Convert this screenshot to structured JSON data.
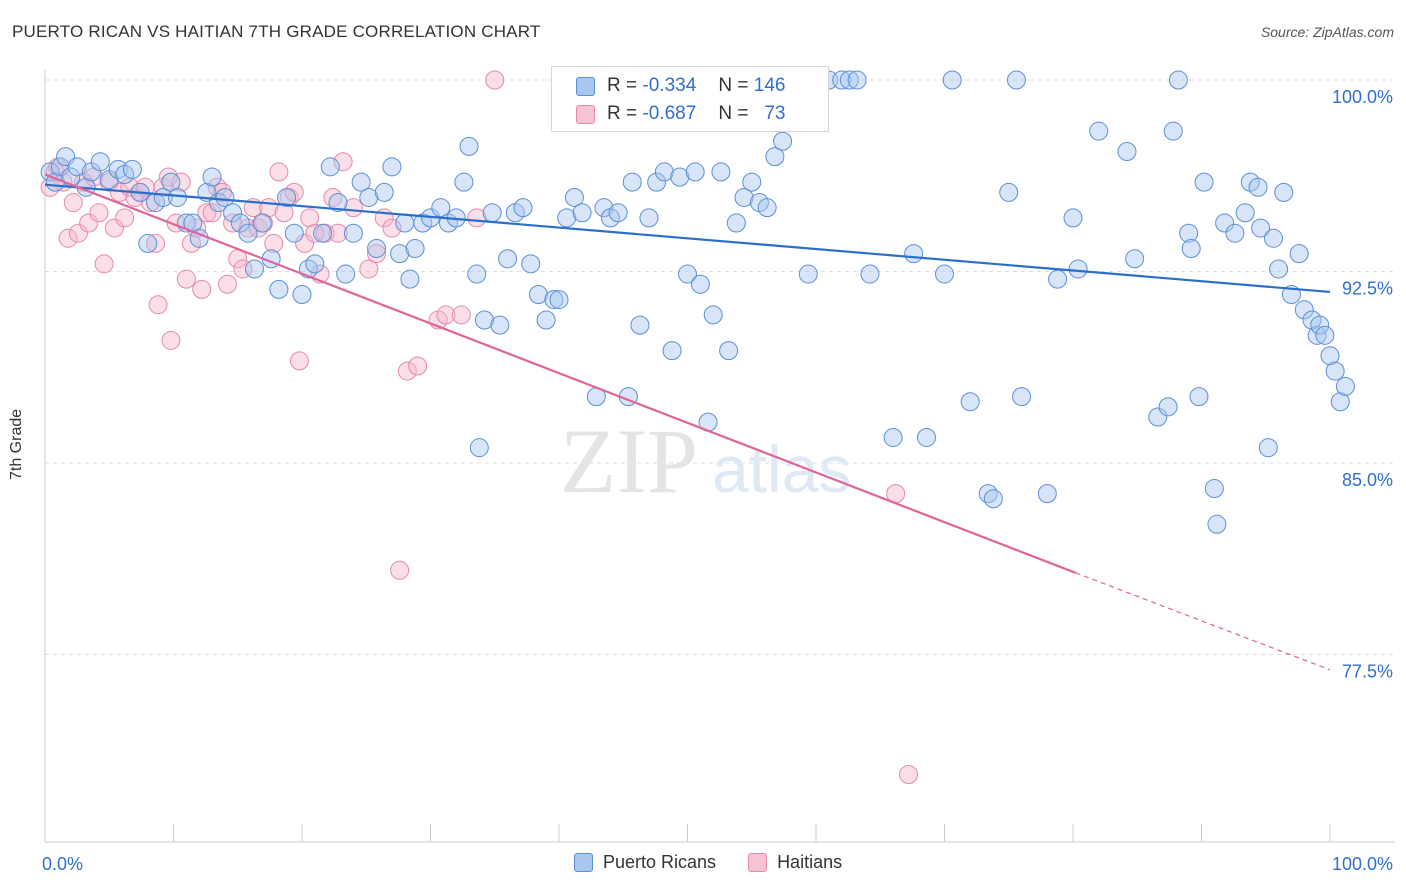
{
  "title": "PUERTO RICAN VS HAITIAN 7TH GRADE CORRELATION CHART",
  "source": "Source: ZipAtlas.com",
  "watermark": {
    "zip": "ZIP",
    "atlas": "atlas"
  },
  "stats": [
    {
      "r_label": "R =",
      "r_value": "-0.334",
      "n_label": "N =",
      "n_value": "146"
    },
    {
      "r_label": "R =",
      "r_value": "-0.687",
      "n_label": "N =",
      "n_value": "73"
    }
  ],
  "legend": {
    "blue": "Puerto Ricans",
    "pink": "Haitians"
  },
  "colors": {
    "blue_fill": "#a9c6ef",
    "blue_stroke": "#5b8fd6",
    "blue_line": "#2a6fcc",
    "pink_fill": "#f6b9cd",
    "pink_stroke": "#e889a9",
    "pink_line": "#e0649a",
    "tick_label": "#2f6fd0",
    "grid": "#dddddd"
  },
  "chart_data": {
    "type": "scatter",
    "title": "PUERTO RICAN VS HAITIAN 7TH GRADE CORRELATION CHART",
    "xlabel": "",
    "ylabel": "7th Grade",
    "xlim": [
      0,
      100
    ],
    "ylim": [
      71,
      101.5
    ],
    "x_tick_labels": [
      "0.0%",
      "100.0%"
    ],
    "y_ticks": [
      100,
      92.5,
      85,
      77.5
    ],
    "y_tick_labels": [
      "100.0%",
      "92.5%",
      "85.0%",
      "77.5%"
    ],
    "grid": true,
    "legend_position": "bottom-center",
    "series": [
      {
        "name": "Puerto Ricans",
        "r": -0.334,
        "n": 146,
        "trend": {
          "x": [
            0,
            100
          ],
          "y": [
            95.9,
            91.7
          ]
        },
        "points": [
          [
            0.4,
            96.4
          ],
          [
            0.8,
            96.0
          ],
          [
            1.2,
            96.6
          ],
          [
            1.6,
            97.0
          ],
          [
            2.0,
            96.2
          ],
          [
            2.5,
            96.6
          ],
          [
            3.2,
            95.8
          ],
          [
            3.6,
            96.4
          ],
          [
            4.3,
            96.8
          ],
          [
            5.0,
            96.1
          ],
          [
            5.7,
            96.5
          ],
          [
            6.2,
            96.3
          ],
          [
            6.8,
            96.5
          ],
          [
            7.4,
            95.6
          ],
          [
            8.0,
            93.6
          ],
          [
            8.6,
            95.2
          ],
          [
            9.2,
            95.4
          ],
          [
            9.8,
            96.0
          ],
          [
            10.3,
            95.4
          ],
          [
            11.0,
            94.4
          ],
          [
            11.5,
            94.4
          ],
          [
            12.0,
            93.8
          ],
          [
            12.6,
            95.6
          ],
          [
            13.0,
            96.2
          ],
          [
            13.5,
            95.2
          ],
          [
            14.0,
            95.4
          ],
          [
            14.6,
            94.8
          ],
          [
            15.2,
            94.4
          ],
          [
            15.8,
            94.0
          ],
          [
            16.3,
            92.6
          ],
          [
            16.9,
            94.4
          ],
          [
            17.6,
            93.0
          ],
          [
            18.2,
            91.8
          ],
          [
            18.8,
            95.4
          ],
          [
            19.4,
            94.0
          ],
          [
            20.0,
            91.6
          ],
          [
            20.5,
            92.6
          ],
          [
            21.0,
            92.8
          ],
          [
            21.6,
            94.0
          ],
          [
            22.2,
            96.6
          ],
          [
            22.8,
            95.2
          ],
          [
            23.4,
            92.4
          ],
          [
            24.0,
            94.0
          ],
          [
            24.6,
            96.0
          ],
          [
            25.2,
            95.4
          ],
          [
            25.8,
            93.4
          ],
          [
            26.4,
            95.6
          ],
          [
            27.0,
            96.6
          ],
          [
            27.6,
            93.2
          ],
          [
            28.0,
            94.4
          ],
          [
            28.4,
            92.2
          ],
          [
            28.8,
            93.4
          ],
          [
            29.4,
            94.4
          ],
          [
            30.0,
            94.6
          ],
          [
            30.8,
            95.0
          ],
          [
            31.4,
            94.4
          ],
          [
            32.0,
            94.6
          ],
          [
            32.6,
            96.0
          ],
          [
            33.0,
            97.4
          ],
          [
            33.6,
            92.4
          ],
          [
            34.2,
            90.6
          ],
          [
            34.8,
            94.8
          ],
          [
            35.4,
            90.4
          ],
          [
            36.0,
            93.0
          ],
          [
            36.6,
            94.8
          ],
          [
            37.2,
            95.0
          ],
          [
            37.8,
            92.8
          ],
          [
            38.4,
            91.6
          ],
          [
            39.0,
            90.6
          ],
          [
            39.6,
            91.4
          ],
          [
            40.0,
            91.4
          ],
          [
            40.6,
            94.6
          ],
          [
            41.2,
            95.4
          ],
          [
            41.8,
            94.8
          ],
          [
            42.4,
            100.0
          ],
          [
            42.9,
            87.6
          ],
          [
            43.5,
            95.0
          ],
          [
            44.0,
            94.6
          ],
          [
            44.6,
            94.8
          ],
          [
            45.1,
            99.0
          ],
          [
            45.7,
            96.0
          ],
          [
            46.3,
            90.4
          ],
          [
            47.0,
            94.6
          ],
          [
            47.6,
            96.0
          ],
          [
            48.2,
            96.4
          ],
          [
            48.8,
            89.4
          ],
          [
            49.4,
            96.2
          ],
          [
            50.0,
            92.4
          ],
          [
            50.6,
            96.4
          ],
          [
            51.0,
            92.0
          ],
          [
            51.6,
            86.6
          ],
          [
            52.0,
            90.8
          ],
          [
            52.6,
            96.4
          ],
          [
            53.2,
            89.4
          ],
          [
            53.8,
            94.4
          ],
          [
            54.4,
            95.4
          ],
          [
            55.0,
            96.0
          ],
          [
            55.6,
            95.2
          ],
          [
            56.2,
            95.0
          ],
          [
            56.8,
            97.0
          ],
          [
            57.4,
            97.6
          ],
          [
            58.0,
            100.0
          ],
          [
            58.6,
            100.0
          ],
          [
            59.4,
            92.4
          ],
          [
            61.0,
            100.0
          ],
          [
            62.0,
            100.0
          ],
          [
            62.6,
            100.0
          ],
          [
            63.2,
            100.0
          ],
          [
            64.2,
            92.4
          ],
          [
            66.0,
            86.0
          ],
          [
            67.6,
            93.2
          ],
          [
            68.6,
            86.0
          ],
          [
            70.0,
            92.4
          ],
          [
            70.6,
            100.0
          ],
          [
            72.0,
            87.4
          ],
          [
            73.4,
            83.8
          ],
          [
            73.8,
            83.6
          ],
          [
            75.0,
            95.6
          ],
          [
            75.6,
            100.0
          ],
          [
            76.0,
            87.6
          ],
          [
            78.0,
            83.8
          ],
          [
            78.8,
            92.2
          ],
          [
            80.0,
            94.6
          ],
          [
            80.4,
            92.6
          ],
          [
            82.0,
            98.0
          ],
          [
            84.2,
            97.2
          ],
          [
            84.8,
            93.0
          ],
          [
            86.6,
            86.8
          ],
          [
            87.4,
            87.2
          ],
          [
            87.8,
            98.0
          ],
          [
            88.2,
            100.0
          ],
          [
            89.0,
            94.0
          ],
          [
            89.2,
            93.4
          ],
          [
            89.8,
            87.6
          ],
          [
            90.2,
            96.0
          ],
          [
            91.0,
            84.0
          ],
          [
            91.2,
            82.6
          ],
          [
            91.8,
            94.4
          ],
          [
            92.6,
            94.0
          ],
          [
            93.4,
            94.8
          ],
          [
            93.8,
            96.0
          ],
          [
            94.4,
            95.8
          ],
          [
            94.6,
            94.2
          ],
          [
            95.2,
            85.6
          ],
          [
            95.6,
            93.8
          ],
          [
            96.0,
            92.6
          ],
          [
            96.4,
            95.6
          ],
          [
            97.0,
            91.6
          ],
          [
            97.6,
            93.2
          ],
          [
            98.0,
            91.0
          ],
          [
            98.6,
            90.6
          ],
          [
            99.0,
            90.0
          ],
          [
            99.2,
            90.4
          ],
          [
            99.6,
            90.0
          ],
          [
            100.0,
            89.2
          ],
          [
            100.4,
            88.6
          ],
          [
            100.8,
            87.4
          ],
          [
            101.2,
            88.0
          ],
          [
            33.8,
            85.6
          ],
          [
            45.4,
            87.6
          ]
        ]
      },
      {
        "name": "Haitians",
        "r": -0.687,
        "n": 73,
        "trend": {
          "x": [
            0,
            80.2
          ],
          "y": [
            96.3,
            80.7
          ]
        },
        "trend_dashed": {
          "x": [
            80.2,
            100
          ],
          "y": [
            80.7,
            76.9
          ]
        },
        "points": [
          [
            0.4,
            95.8
          ],
          [
            0.8,
            96.4
          ],
          [
            1.0,
            96.6
          ],
          [
            1.4,
            96.0
          ],
          [
            1.8,
            93.8
          ],
          [
            2.2,
            95.2
          ],
          [
            2.6,
            94.0
          ],
          [
            3.0,
            96.0
          ],
          [
            3.4,
            94.4
          ],
          [
            3.8,
            96.2
          ],
          [
            4.2,
            94.8
          ],
          [
            4.6,
            92.8
          ],
          [
            5.0,
            96.0
          ],
          [
            5.4,
            94.2
          ],
          [
            5.8,
            95.6
          ],
          [
            6.2,
            94.6
          ],
          [
            6.6,
            95.8
          ],
          [
            7.0,
            95.4
          ],
          [
            7.4,
            95.6
          ],
          [
            7.8,
            95.8
          ],
          [
            8.2,
            95.2
          ],
          [
            8.6,
            93.6
          ],
          [
            8.8,
            91.2
          ],
          [
            9.2,
            95.8
          ],
          [
            9.6,
            96.2
          ],
          [
            9.8,
            89.8
          ],
          [
            10.2,
            94.4
          ],
          [
            10.6,
            96.0
          ],
          [
            11.0,
            92.2
          ],
          [
            11.4,
            93.6
          ],
          [
            11.8,
            94.2
          ],
          [
            12.2,
            91.8
          ],
          [
            12.6,
            94.8
          ],
          [
            13.0,
            94.8
          ],
          [
            13.4,
            95.8
          ],
          [
            13.8,
            95.6
          ],
          [
            14.2,
            92.0
          ],
          [
            14.6,
            94.4
          ],
          [
            15.0,
            93.0
          ],
          [
            15.4,
            92.6
          ],
          [
            15.8,
            94.2
          ],
          [
            16.2,
            95.0
          ],
          [
            16.6,
            94.2
          ],
          [
            17.0,
            94.4
          ],
          [
            17.4,
            95.0
          ],
          [
            17.8,
            93.6
          ],
          [
            18.2,
            96.4
          ],
          [
            18.6,
            94.8
          ],
          [
            19.0,
            95.4
          ],
          [
            19.4,
            95.6
          ],
          [
            19.8,
            89.0
          ],
          [
            20.2,
            93.6
          ],
          [
            20.6,
            94.6
          ],
          [
            21.0,
            94.0
          ],
          [
            21.4,
            92.4
          ],
          [
            21.8,
            94.0
          ],
          [
            22.4,
            95.4
          ],
          [
            22.8,
            94.0
          ],
          [
            23.2,
            96.8
          ],
          [
            24.0,
            95.0
          ],
          [
            25.2,
            92.6
          ],
          [
            25.8,
            93.2
          ],
          [
            26.4,
            94.6
          ],
          [
            27.0,
            94.2
          ],
          [
            27.6,
            80.8
          ],
          [
            28.2,
            88.6
          ],
          [
            29.0,
            88.8
          ],
          [
            30.6,
            90.6
          ],
          [
            31.2,
            90.8
          ],
          [
            32.4,
            90.8
          ],
          [
            33.6,
            94.6
          ],
          [
            35.0,
            100.0
          ],
          [
            66.2,
            83.8
          ],
          [
            67.2,
            72.8
          ]
        ]
      }
    ]
  }
}
